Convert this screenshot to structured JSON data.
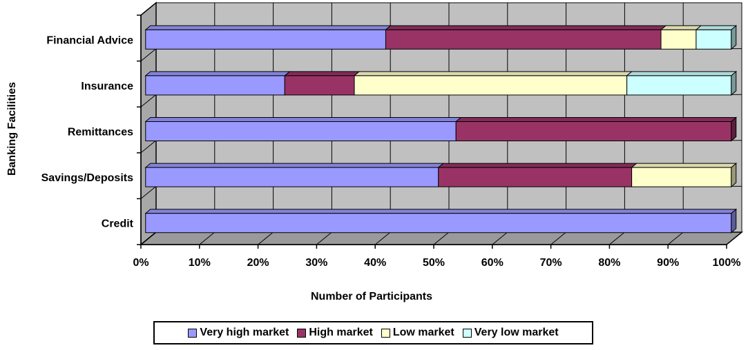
{
  "chart_data": {
    "type": "bar",
    "orientation": "horizontal",
    "stacked": "percent",
    "three_d": true,
    "categories": [
      "Credit",
      "Savings/Deposits",
      "Remittances",
      "Insurance",
      "Financial Advice"
    ],
    "series": [
      {
        "name": "Very high market",
        "color": "#9999ff",
        "values": [
          100,
          50,
          53,
          24,
          41
        ]
      },
      {
        "name": "High market",
        "color": "#993366",
        "values": [
          0,
          33,
          47,
          12,
          47
        ]
      },
      {
        "name": "Low market",
        "color": "#ffffcc",
        "values": [
          0,
          17,
          0,
          47,
          6
        ]
      },
      {
        "name": "Very low market",
        "color": "#ccffff",
        "values": [
          0,
          0,
          0,
          18,
          6
        ]
      }
    ],
    "xlabel": "Number of Participants",
    "ylabel": "Banking Facilities",
    "xlim": [
      0,
      100
    ],
    "x_ticks": [
      "0%",
      "10%",
      "20%",
      "30%",
      "40%",
      "50%",
      "60%",
      "70%",
      "80%",
      "90%",
      "100%"
    ],
    "grid": true,
    "legend_position": "bottom",
    "wall_color": "#c0c0c0"
  }
}
